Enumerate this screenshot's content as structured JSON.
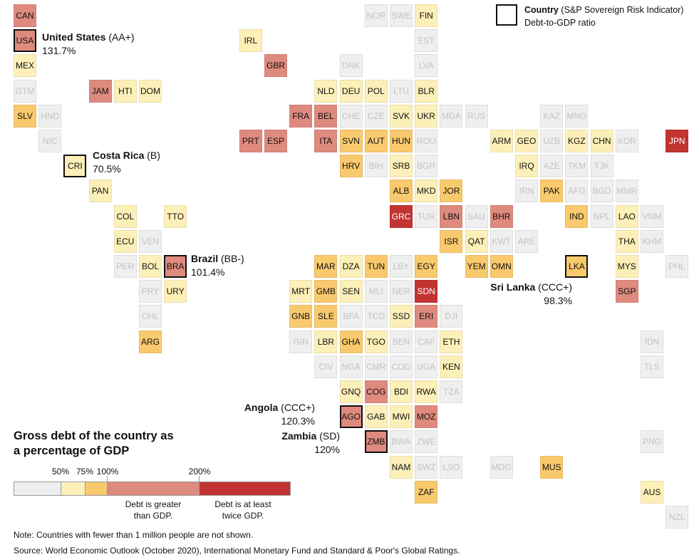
{
  "legend": {
    "header_label": "Country",
    "header_sub": "(S&P Sovereign Risk Indicator)",
    "ratio_label": "Debt-to-GDP ratio"
  },
  "scale": {
    "title_line1": "Gross debt of the country as",
    "title_line2": "a percentage of GDP",
    "ticks": [
      "50%",
      "75%",
      "100%",
      "200%"
    ],
    "note_greater_line1": "Debt is greater",
    "note_greater_line2": "than GDP.",
    "note_twice_line1": "Debt is at least",
    "note_twice_line2": "twice GDP.",
    "bins": [
      {
        "range": "<50%",
        "color": "#efefef"
      },
      {
        "range": "50-75%",
        "color": "#fcf0b8"
      },
      {
        "range": "75-100%",
        "color": "#f9c96d"
      },
      {
        "range": "100-200%",
        "color": "#de8a7e"
      },
      {
        "range": ">=200%",
        "color": "#c23431"
      }
    ]
  },
  "callouts": [
    {
      "code": "USA",
      "name": "United States",
      "rating": "(AA+)",
      "ratio": "131.7%"
    },
    {
      "code": "CRI",
      "name": "Costa Rica",
      "rating": "(B)",
      "ratio": "70.5%"
    },
    {
      "code": "BRA",
      "name": "Brazil",
      "rating": "(BB-)",
      "ratio": "101.4%"
    },
    {
      "code": "LKA",
      "name": "Sri Lanka",
      "rating": "(CCC+)",
      "ratio": "98.3%"
    },
    {
      "code": "AGO",
      "name": "Angola",
      "rating": "(CCC+)",
      "ratio": "120.3%"
    },
    {
      "code": "ZMB",
      "name": "Zambia",
      "rating": "(SD)",
      "ratio": "120%"
    }
  ],
  "countries": [
    {
      "code": "CAN",
      "row": 0,
      "col": 0,
      "bin": "100-200%"
    },
    {
      "code": "NOR",
      "row": 0,
      "col": 14,
      "bin": "none"
    },
    {
      "code": "SWE",
      "row": 0,
      "col": 15,
      "bin": "none"
    },
    {
      "code": "FIN",
      "row": 0,
      "col": 16,
      "bin": "50-75%"
    },
    {
      "code": "USA",
      "row": 1,
      "col": 0,
      "bin": "100-200%",
      "highlight": true
    },
    {
      "code": "IRL",
      "row": 1,
      "col": 9,
      "bin": "50-75%"
    },
    {
      "code": "EST",
      "row": 1,
      "col": 16,
      "bin": "none"
    },
    {
      "code": "MEX",
      "row": 2,
      "col": 0,
      "bin": "50-75%"
    },
    {
      "code": "GBR",
      "row": 2,
      "col": 10,
      "bin": "100-200%"
    },
    {
      "code": "DNK",
      "row": 2,
      "col": 13,
      "bin": "none"
    },
    {
      "code": "LVA",
      "row": 2,
      "col": 16,
      "bin": "none"
    },
    {
      "code": "GTM",
      "row": 3,
      "col": 0,
      "bin": "none"
    },
    {
      "code": "JAM",
      "row": 3,
      "col": 3,
      "bin": "100-200%"
    },
    {
      "code": "HTI",
      "row": 3,
      "col": 4,
      "bin": "50-75%"
    },
    {
      "code": "DOM",
      "row": 3,
      "col": 5,
      "bin": "50-75%"
    },
    {
      "code": "NLD",
      "row": 3,
      "col": 12,
      "bin": "50-75%"
    },
    {
      "code": "DEU",
      "row": 3,
      "col": 13,
      "bin": "50-75%"
    },
    {
      "code": "POL",
      "row": 3,
      "col": 14,
      "bin": "50-75%"
    },
    {
      "code": "LTU",
      "row": 3,
      "col": 15,
      "bin": "none"
    },
    {
      "code": "BLR",
      "row": 3,
      "col": 16,
      "bin": "50-75%"
    },
    {
      "code": "SLV",
      "row": 4,
      "col": 0,
      "bin": "75-100%"
    },
    {
      "code": "HND",
      "row": 4,
      "col": 1,
      "bin": "none"
    },
    {
      "code": "FRA",
      "row": 4,
      "col": 11,
      "bin": "100-200%"
    },
    {
      "code": "BEL",
      "row": 4,
      "col": 12,
      "bin": "100-200%"
    },
    {
      "code": "CHE",
      "row": 4,
      "col": 13,
      "bin": "none"
    },
    {
      "code": "CZE",
      "row": 4,
      "col": 14,
      "bin": "none"
    },
    {
      "code": "SVK",
      "row": 4,
      "col": 15,
      "bin": "50-75%"
    },
    {
      "code": "UKR",
      "row": 4,
      "col": 16,
      "bin": "50-75%"
    },
    {
      "code": "MDA",
      "row": 4,
      "col": 17,
      "bin": "none"
    },
    {
      "code": "RUS",
      "row": 4,
      "col": 18,
      "bin": "none"
    },
    {
      "code": "KAZ",
      "row": 4,
      "col": 21,
      "bin": "none"
    },
    {
      "code": "MNG",
      "row": 4,
      "col": 22,
      "bin": "none"
    },
    {
      "code": "NIC",
      "row": 5,
      "col": 1,
      "bin": "none"
    },
    {
      "code": "PRT",
      "row": 5,
      "col": 9,
      "bin": "100-200%"
    },
    {
      "code": "ESP",
      "row": 5,
      "col": 10,
      "bin": "100-200%"
    },
    {
      "code": "ITA",
      "row": 5,
      "col": 12,
      "bin": "100-200%"
    },
    {
      "code": "SVN",
      "row": 5,
      "col": 13,
      "bin": "75-100%"
    },
    {
      "code": "AUT",
      "row": 5,
      "col": 14,
      "bin": "75-100%"
    },
    {
      "code": "HUN",
      "row": 5,
      "col": 15,
      "bin": "75-100%"
    },
    {
      "code": "ROU",
      "row": 5,
      "col": 16,
      "bin": "none"
    },
    {
      "code": "ARM",
      "row": 5,
      "col": 19,
      "bin": "50-75%"
    },
    {
      "code": "GEO",
      "row": 5,
      "col": 20,
      "bin": "50-75%"
    },
    {
      "code": "UZB",
      "row": 5,
      "col": 21,
      "bin": "none"
    },
    {
      "code": "KGZ",
      "row": 5,
      "col": 22,
      "bin": "50-75%"
    },
    {
      "code": "CHN",
      "row": 5,
      "col": 23,
      "bin": "50-75%"
    },
    {
      "code": "KOR",
      "row": 5,
      "col": 24,
      "bin": "none"
    },
    {
      "code": "JPN",
      "row": 5,
      "col": 26,
      "bin": ">=200%"
    },
    {
      "code": "CRI",
      "row": 6,
      "col": 2,
      "bin": "50-75%",
      "highlight": true
    },
    {
      "code": "HRV",
      "row": 6,
      "col": 13,
      "bin": "75-100%"
    },
    {
      "code": "BIH",
      "row": 6,
      "col": 14,
      "bin": "none"
    },
    {
      "code": "SRB",
      "row": 6,
      "col": 15,
      "bin": "50-75%"
    },
    {
      "code": "BGR",
      "row": 6,
      "col": 16,
      "bin": "none"
    },
    {
      "code": "IRQ",
      "row": 6,
      "col": 20,
      "bin": "50-75%"
    },
    {
      "code": "AZE",
      "row": 6,
      "col": 21,
      "bin": "none"
    },
    {
      "code": "TKM",
      "row": 6,
      "col": 22,
      "bin": "none"
    },
    {
      "code": "TJK",
      "row": 6,
      "col": 23,
      "bin": "none"
    },
    {
      "code": "PAN",
      "row": 7,
      "col": 3,
      "bin": "50-75%"
    },
    {
      "code": "ALB",
      "row": 7,
      "col": 15,
      "bin": "75-100%"
    },
    {
      "code": "MKD",
      "row": 7,
      "col": 16,
      "bin": "50-75%"
    },
    {
      "code": "JOR",
      "row": 7,
      "col": 17,
      "bin": "75-100%"
    },
    {
      "code": "IRN",
      "row": 7,
      "col": 20,
      "bin": "none"
    },
    {
      "code": "PAK",
      "row": 7,
      "col": 21,
      "bin": "75-100%"
    },
    {
      "code": "AFG",
      "row": 7,
      "col": 22,
      "bin": "none"
    },
    {
      "code": "BGD",
      "row": 7,
      "col": 23,
      "bin": "none"
    },
    {
      "code": "MMR",
      "row": 7,
      "col": 24,
      "bin": "none"
    },
    {
      "code": "COL",
      "row": 8,
      "col": 4,
      "bin": "50-75%"
    },
    {
      "code": "TTO",
      "row": 8,
      "col": 6,
      "bin": "50-75%"
    },
    {
      "code": "GRC",
      "row": 8,
      "col": 15,
      "bin": ">=200%"
    },
    {
      "code": "TUR",
      "row": 8,
      "col": 16,
      "bin": "none"
    },
    {
      "code": "LBN",
      "row": 8,
      "col": 17,
      "bin": "100-200%"
    },
    {
      "code": "SAU",
      "row": 8,
      "col": 18,
      "bin": "none"
    },
    {
      "code": "BHR",
      "row": 8,
      "col": 19,
      "bin": "100-200%"
    },
    {
      "code": "IND",
      "row": 8,
      "col": 22,
      "bin": "75-100%"
    },
    {
      "code": "NPL",
      "row": 8,
      "col": 23,
      "bin": "none"
    },
    {
      "code": "LAO",
      "row": 8,
      "col": 24,
      "bin": "50-75%"
    },
    {
      "code": "VNM",
      "row": 8,
      "col": 25,
      "bin": "none"
    },
    {
      "code": "ECU",
      "row": 9,
      "col": 4,
      "bin": "50-75%"
    },
    {
      "code": "VEN",
      "row": 9,
      "col": 5,
      "bin": "none"
    },
    {
      "code": "ISR",
      "row": 9,
      "col": 17,
      "bin": "75-100%"
    },
    {
      "code": "QAT",
      "row": 9,
      "col": 18,
      "bin": "50-75%"
    },
    {
      "code": "KWT",
      "row": 9,
      "col": 19,
      "bin": "none"
    },
    {
      "code": "ARE",
      "row": 9,
      "col": 20,
      "bin": "none"
    },
    {
      "code": "THA",
      "row": 9,
      "col": 24,
      "bin": "50-75%"
    },
    {
      "code": "KHM",
      "row": 9,
      "col": 25,
      "bin": "none"
    },
    {
      "code": "PER",
      "row": 10,
      "col": 4,
      "bin": "none"
    },
    {
      "code": "BOL",
      "row": 10,
      "col": 5,
      "bin": "50-75%"
    },
    {
      "code": "BRA",
      "row": 10,
      "col": 6,
      "bin": "100-200%",
      "highlight": true
    },
    {
      "code": "MAR",
      "row": 10,
      "col": 12,
      "bin": "75-100%"
    },
    {
      "code": "DZA",
      "row": 10,
      "col": 13,
      "bin": "50-75%"
    },
    {
      "code": "TUN",
      "row": 10,
      "col": 14,
      "bin": "75-100%"
    },
    {
      "code": "LBY",
      "row": 10,
      "col": 15,
      "bin": "none"
    },
    {
      "code": "EGY",
      "row": 10,
      "col": 16,
      "bin": "75-100%"
    },
    {
      "code": "YEM",
      "row": 10,
      "col": 18,
      "bin": "75-100%"
    },
    {
      "code": "OMN",
      "row": 10,
      "col": 19,
      "bin": "75-100%"
    },
    {
      "code": "LKA",
      "row": 10,
      "col": 22,
      "bin": "75-100%",
      "highlight": true
    },
    {
      "code": "MYS",
      "row": 10,
      "col": 24,
      "bin": "50-75%"
    },
    {
      "code": "PHL",
      "row": 10,
      "col": 26,
      "bin": "none"
    },
    {
      "code": "PRY",
      "row": 11,
      "col": 5,
      "bin": "none"
    },
    {
      "code": "URY",
      "row": 11,
      "col": 6,
      "bin": "50-75%"
    },
    {
      "code": "MRT",
      "row": 11,
      "col": 11,
      "bin": "50-75%"
    },
    {
      "code": "GMB",
      "row": 11,
      "col": 12,
      "bin": "75-100%"
    },
    {
      "code": "SEN",
      "row": 11,
      "col": 13,
      "bin": "50-75%"
    },
    {
      "code": "MLI",
      "row": 11,
      "col": 14,
      "bin": "none"
    },
    {
      "code": "NER",
      "row": 11,
      "col": 15,
      "bin": "none"
    },
    {
      "code": "SDN",
      "row": 11,
      "col": 16,
      "bin": ">=200%"
    },
    {
      "code": "SGP",
      "row": 11,
      "col": 24,
      "bin": "100-200%"
    },
    {
      "code": "CHL",
      "row": 12,
      "col": 5,
      "bin": "none"
    },
    {
      "code": "GNB",
      "row": 12,
      "col": 11,
      "bin": "75-100%"
    },
    {
      "code": "SLE",
      "row": 12,
      "col": 12,
      "bin": "75-100%"
    },
    {
      "code": "BFA",
      "row": 12,
      "col": 13,
      "bin": "none"
    },
    {
      "code": "TCD",
      "row": 12,
      "col": 14,
      "bin": "none"
    },
    {
      "code": "SSD",
      "row": 12,
      "col": 15,
      "bin": "50-75%"
    },
    {
      "code": "ERI",
      "row": 12,
      "col": 16,
      "bin": "100-200%"
    },
    {
      "code": "DJI",
      "row": 12,
      "col": 17,
      "bin": "none"
    },
    {
      "code": "ARG",
      "row": 13,
      "col": 5,
      "bin": "75-100%"
    },
    {
      "code": "GIN",
      "row": 13,
      "col": 11,
      "bin": "none"
    },
    {
      "code": "LBR",
      "row": 13,
      "col": 12,
      "bin": "50-75%"
    },
    {
      "code": "GHA",
      "row": 13,
      "col": 13,
      "bin": "75-100%"
    },
    {
      "code": "TGO",
      "row": 13,
      "col": 14,
      "bin": "50-75%"
    },
    {
      "code": "BEN",
      "row": 13,
      "col": 15,
      "bin": "none"
    },
    {
      "code": "CAF",
      "row": 13,
      "col": 16,
      "bin": "none"
    },
    {
      "code": "ETH",
      "row": 13,
      "col": 17,
      "bin": "50-75%"
    },
    {
      "code": "IDN",
      "row": 13,
      "col": 25,
      "bin": "none"
    },
    {
      "code": "CIV",
      "row": 14,
      "col": 12,
      "bin": "none"
    },
    {
      "code": "NGA",
      "row": 14,
      "col": 13,
      "bin": "none"
    },
    {
      "code": "CMR",
      "row": 14,
      "col": 14,
      "bin": "none"
    },
    {
      "code": "COD",
      "row": 14,
      "col": 15,
      "bin": "none"
    },
    {
      "code": "UGA",
      "row": 14,
      "col": 16,
      "bin": "none"
    },
    {
      "code": "KEN",
      "row": 14,
      "col": 17,
      "bin": "50-75%"
    },
    {
      "code": "TLS",
      "row": 14,
      "col": 25,
      "bin": "none"
    },
    {
      "code": "GNQ",
      "row": 15,
      "col": 13,
      "bin": "50-75%"
    },
    {
      "code": "COG",
      "row": 15,
      "col": 14,
      "bin": "100-200%"
    },
    {
      "code": "BDI",
      "row": 15,
      "col": 15,
      "bin": "50-75%"
    },
    {
      "code": "RWA",
      "row": 15,
      "col": 16,
      "bin": "50-75%"
    },
    {
      "code": "TZA",
      "row": 15,
      "col": 17,
      "bin": "none"
    },
    {
      "code": "AGO",
      "row": 16,
      "col": 13,
      "bin": "100-200%",
      "highlight": true
    },
    {
      "code": "GAB",
      "row": 16,
      "col": 14,
      "bin": "50-75%"
    },
    {
      "code": "MWI",
      "row": 16,
      "col": 15,
      "bin": "50-75%"
    },
    {
      "code": "MOZ",
      "row": 16,
      "col": 16,
      "bin": "100-200%"
    },
    {
      "code": "ZMB",
      "row": 17,
      "col": 14,
      "bin": "100-200%",
      "highlight": true
    },
    {
      "code": "BWA",
      "row": 17,
      "col": 15,
      "bin": "none"
    },
    {
      "code": "ZWE",
      "row": 17,
      "col": 16,
      "bin": "none"
    },
    {
      "code": "PNG",
      "row": 17,
      "col": 25,
      "bin": "none"
    },
    {
      "code": "NAM",
      "row": 18,
      "col": 15,
      "bin": "50-75%"
    },
    {
      "code": "SWZ",
      "row": 18,
      "col": 16,
      "bin": "none"
    },
    {
      "code": "LSO",
      "row": 18,
      "col": 17,
      "bin": "none"
    },
    {
      "code": "MDG",
      "row": 18,
      "col": 19,
      "bin": "none"
    },
    {
      "code": "MUS",
      "row": 18,
      "col": 21,
      "bin": "75-100%"
    },
    {
      "code": "ZAF",
      "row": 19,
      "col": 16,
      "bin": "75-100%"
    },
    {
      "code": "AUS",
      "row": 19,
      "col": 25,
      "bin": "50-75%"
    },
    {
      "code": "NZL",
      "row": 20,
      "col": 26,
      "bin": "none"
    }
  ],
  "notes": {
    "note": "Note: Countries with fewer than 1 million people are not shown.",
    "source": "Source: World Economic Outlook (October 2020), International Monetary Fund and Standard & Poor's Global Ratings."
  }
}
